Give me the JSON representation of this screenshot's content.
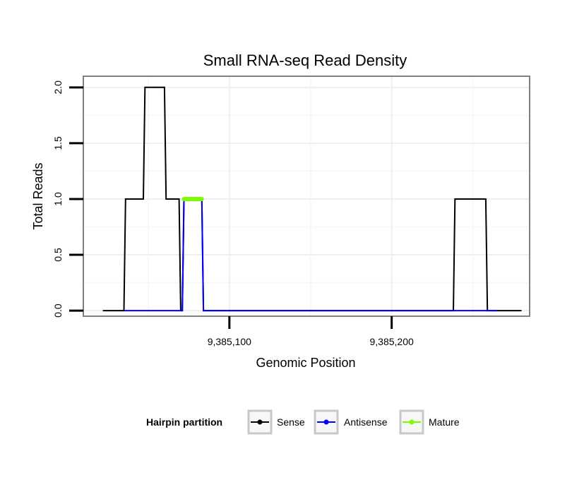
{
  "chart_data": {
    "type": "line",
    "title": "Small RNA-seq Read Density",
    "xlabel": "Genomic Position",
    "ylabel": "Total Reads",
    "xlim": [
      9385010,
      9385285
    ],
    "ylim": [
      -0.05,
      2.1
    ],
    "x_ticks": [
      {
        "value": 9385100,
        "label": "9,385,100"
      },
      {
        "value": 9385200,
        "label": "9,385,200"
      }
    ],
    "y_ticks": [
      {
        "value": 0.0,
        "label": "0.0"
      },
      {
        "value": 0.5,
        "label": "0.5"
      },
      {
        "value": 1.0,
        "label": "1.0"
      },
      {
        "value": 1.5,
        "label": "1.5"
      },
      {
        "value": 2.0,
        "label": "2.0"
      }
    ],
    "grid": true,
    "legend": {
      "title": "Hairpin partition",
      "position": "bottom"
    },
    "series": [
      {
        "name": "Sense",
        "color": "#000000",
        "x": [
          9385022,
          9385035,
          9385036,
          9385047,
          9385048,
          9385060,
          9385061,
          9385069,
          9385070,
          9385071,
          9385072,
          9385083,
          9385084,
          9385238,
          9385239,
          9385258,
          9385259,
          9385280
        ],
        "y": [
          0,
          0,
          1,
          1,
          2,
          2,
          1,
          1,
          0,
          0,
          1,
          1,
          0,
          0,
          1,
          1,
          0,
          0
        ]
      },
      {
        "name": "Antisense",
        "color": "#0000ff",
        "x": [
          9385035,
          9385071,
          9385072,
          9385083,
          9385084,
          9385238,
          9385259,
          9385265
        ],
        "y": [
          0,
          0,
          1,
          1,
          0,
          0,
          0,
          0
        ]
      },
      {
        "name": "Mature",
        "color": "#7cfc00",
        "x": [
          9385072,
          9385083
        ],
        "y": [
          1,
          1
        ]
      }
    ]
  }
}
